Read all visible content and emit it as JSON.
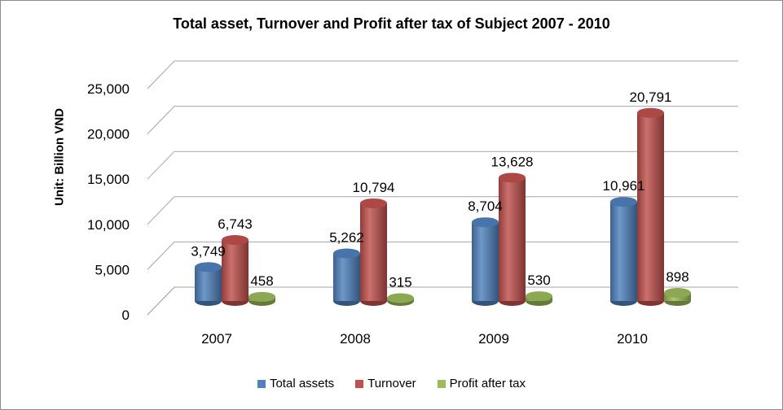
{
  "chart_data": {
    "type": "bar",
    "title": "Total asset, Turnover and Profit after tax of Subject 2007 - 2010",
    "xlabel": "",
    "ylabel": "Unit: Billion VND",
    "ylim": [
      0,
      25000
    ],
    "yticks": [
      "0",
      "5,000",
      "10,000",
      "15,000",
      "20,000",
      "25,000"
    ],
    "categories": [
      "2007",
      "2008",
      "2009",
      "2010"
    ],
    "grid": true,
    "legend_position": "bottom",
    "series": [
      {
        "name": "Total assets",
        "color": "#4f81bd",
        "values": [
          3749,
          5262,
          8704,
          10961
        ],
        "labels": [
          "3,749",
          "5,262",
          "8,704",
          "10,961"
        ]
      },
      {
        "name": "Turnover",
        "color": "#c0504d",
        "values": [
          6743,
          10794,
          13628,
          20791
        ],
        "labels": [
          "6,743",
          "10,794",
          "13,628",
          "20,791"
        ]
      },
      {
        "name": "Profit after tax",
        "color": "#9bbb59",
        "values": [
          458,
          315,
          530,
          898
        ],
        "labels": [
          "458",
          "315",
          "530",
          "898"
        ]
      }
    ]
  }
}
